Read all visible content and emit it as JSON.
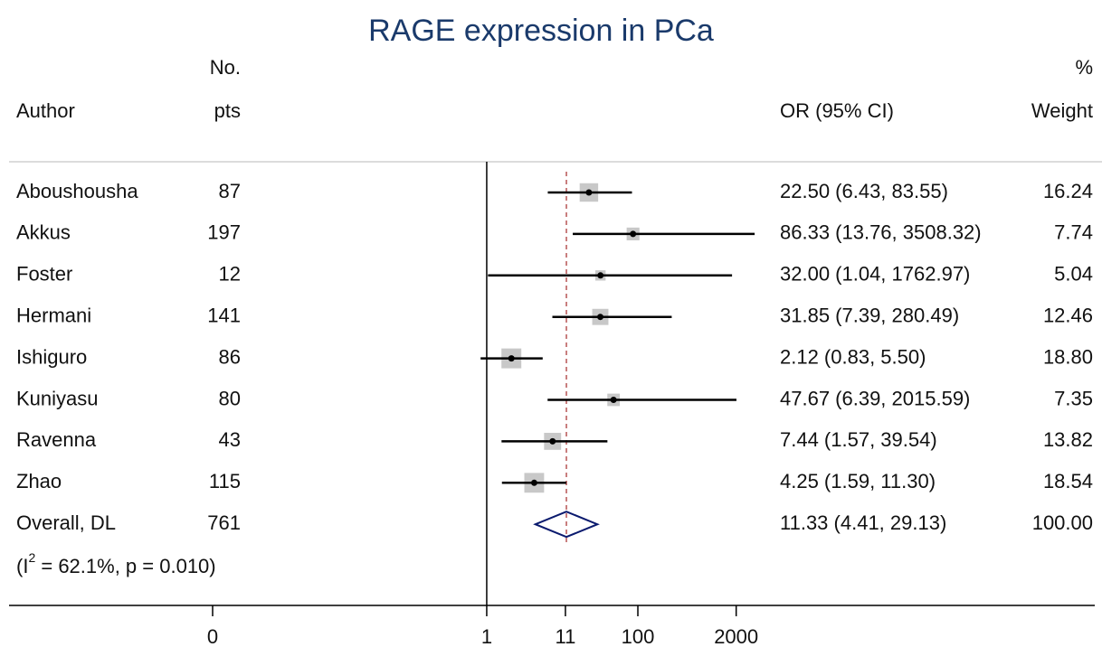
{
  "chart_data": {
    "type": "forest",
    "title": "RAGE expression in PCa",
    "headers": {
      "n_top": "No.",
      "n_bottom": "pts",
      "author": "Author",
      "effect": "OR (95% CI)",
      "weight_top": "%",
      "weight_bottom": "Weight"
    },
    "authors": [
      "Aboushousha",
      "Akkus",
      "Foster",
      "Hermani",
      "Ishiguro",
      "Kuniyasu",
      "Ravenna",
      "Zhao"
    ],
    "n": [
      87,
      197,
      12,
      141,
      86,
      80,
      43,
      115
    ],
    "or": [
      22.5,
      86.33,
      32.0,
      31.85,
      2.12,
      47.67,
      7.44,
      4.25
    ],
    "ci_lo": [
      6.43,
      13.76,
      1.04,
      7.39,
      0.83,
      6.39,
      1.57,
      1.59
    ],
    "ci_hi": [
      83.55,
      3508.32,
      1762.97,
      280.49,
      5.5,
      2015.59,
      39.54,
      11.3
    ],
    "ci_labels": [
      "22.50 (6.43, 83.55)",
      "86.33 (13.76, 3508.32)",
      "32.00 (1.04, 1762.97)",
      "31.85 (7.39, 280.49)",
      "2.12 (0.83, 5.50)",
      "47.67 (6.39, 2015.59)",
      "7.44 (1.57, 39.54)",
      "4.25 (1.59, 11.30)"
    ],
    "weights": [
      16.24,
      7.74,
      5.04,
      12.46,
      18.8,
      7.35,
      13.82,
      18.54
    ],
    "weight_labels": [
      "16.24",
      "7.74",
      "5.04",
      "12.46",
      "18.80",
      "7.35",
      "13.82",
      "18.54"
    ],
    "overall": {
      "author": "Overall, DL",
      "n": 761,
      "or": 11.33,
      "ci_lo": 4.41,
      "ci_hi": 29.13,
      "ci_label": "11.33 (4.41, 29.13)",
      "weight": 100,
      "weight_label": "100.00"
    },
    "heterogeneity": {
      "open": "(I",
      "sup": "2",
      "rest": " = 62.1%, p = 0.010)"
    },
    "log_scale": true,
    "xlim": [
      0.000236,
      3600
    ],
    "xticks": [
      {
        "value": 0.000236,
        "label": "0"
      },
      1,
      11,
      100,
      2000
    ],
    "reference_line": 1,
    "box_color": "#c8c8c8",
    "line_color": "#000000",
    "overall_line_color": "#a52a2a",
    "diamond_color": "#0a1a6e"
  }
}
